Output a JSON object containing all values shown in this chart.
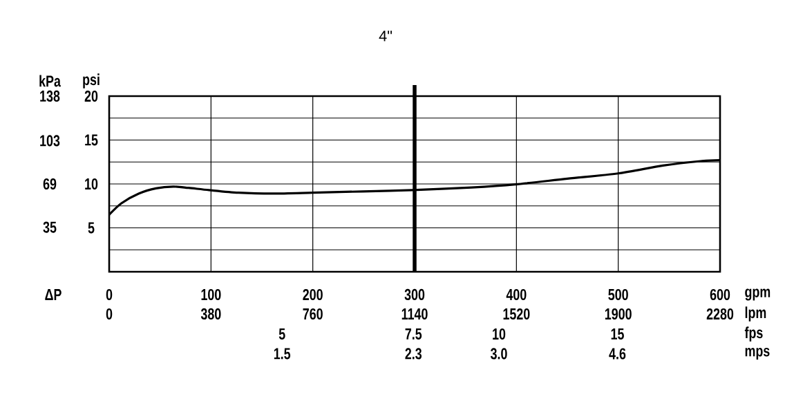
{
  "chart_data": {
    "type": "line",
    "title": "4\"",
    "xlabel": "gpm",
    "ylabel": "psi",
    "y2label": "kPa",
    "x2label": "lpm",
    "annotations": [
      "ΔP",
      "fps",
      "5",
      "7.5",
      "10",
      "15",
      "mps",
      "1.5",
      "2.3",
      "3.0",
      "4.6"
    ],
    "x": [
      0,
      12,
      29,
      46,
      63,
      78,
      98,
      127,
      161,
      200,
      249,
      298,
      356,
      399,
      450,
      500,
      544,
      581,
      600
    ],
    "series": [
      {
        "color": "#000000",
        "values": [
          6.5,
          7.8,
          8.9,
          9.5,
          9.7,
          9.55,
          9.3,
          9.0,
          8.9,
          9.0,
          9.15,
          9.3,
          9.6,
          9.95,
          10.6,
          11.2,
          12.1,
          12.6,
          12.7
        ]
      }
    ],
    "xlim": [
      0,
      600
    ],
    "xticks": [
      0,
      100,
      200,
      300,
      400,
      500,
      600
    ],
    "ylim": [
      0,
      20
    ],
    "yticks": [
      {
        "value": 0,
        "label": null
      },
      {
        "value": 2.5,
        "label": null
      },
      5,
      {
        "value": 7.5,
        "label": null
      },
      10,
      {
        "value": 12.5,
        "label": null
      },
      15,
      {
        "value": 17.5,
        "label": null
      },
      20
    ],
    "y2lim": [
      0,
      138
    ],
    "y2ticks": [
      35,
      69,
      103,
      138
    ],
    "x2lim": [
      0,
      2280
    ],
    "x2ticks": [
      0,
      380,
      760,
      1140,
      1520,
      1900,
      2280
    ],
    "ref_lines": [
      {
        "axis": "x",
        "value": 300,
        "color": "#000000"
      }
    ],
    "grid": true,
    "marker": "none",
    "line_style": "solid"
  }
}
